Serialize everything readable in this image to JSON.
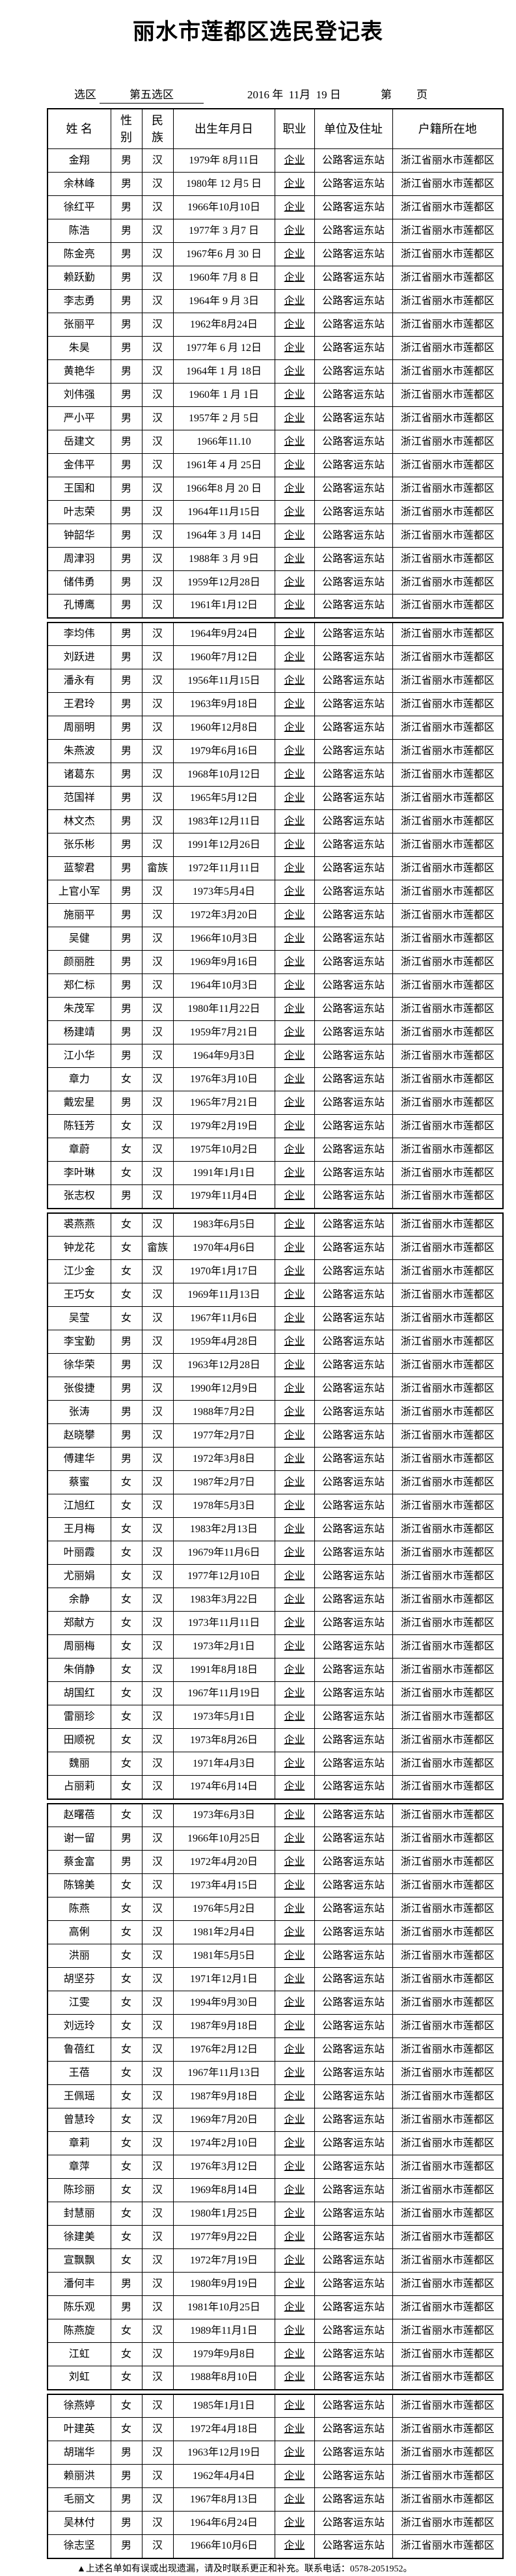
{
  "title": "丽水市莲都区选民登记表",
  "meta": {
    "district_label": "选区",
    "district_value": "第五选区",
    "date": "2016 年  11月  19 日",
    "page_label": "第",
    "page_suffix": "页"
  },
  "columns": [
    "姓  名",
    "性别",
    "民族",
    "出生年月日",
    "职业",
    "单位及住址",
    "户籍所在地"
  ],
  "groups": [
    [
      [
        "金翔",
        "男",
        "汉",
        "1979年  8月11日",
        "企业",
        "公路客运东站",
        "浙江省丽水市莲都区"
      ],
      [
        "余林峰",
        "男",
        "汉",
        "1980年  12 月5 日",
        "企业",
        "公路客运东站",
        "浙江省丽水市莲都区"
      ],
      [
        "徐红平",
        "男",
        "汉",
        "1966年10月10日",
        "企业",
        "公路客运东站",
        "浙江省丽水市莲都区"
      ],
      [
        "陈浩",
        "男",
        "汉",
        "1977年  3 月7  日",
        "企业",
        "公路客运东站",
        "浙江省丽水市莲都区"
      ],
      [
        "陈金亮",
        "男",
        "汉",
        "1967年6  月 30 日",
        "企业",
        "公路客运东站",
        "浙江省丽水市莲都区"
      ],
      [
        "赖跃勤",
        "男",
        "汉",
        "1960年  7月 8 日",
        "企业",
        "公路客运东站",
        "浙江省丽水市莲都区"
      ],
      [
        "李志勇",
        "男",
        "汉",
        "1964年 9 月  3日",
        "企业",
        "公路客运东站",
        "浙江省丽水市莲都区"
      ],
      [
        "张丽平",
        "男",
        "汉",
        "1962年8月24日",
        "企业",
        "公路客运东站",
        "浙江省丽水市莲都区"
      ],
      [
        "朱昊",
        "男",
        "汉",
        "1977年 6 月  12日",
        "企业",
        "公路客运东站",
        "浙江省丽水市莲都区"
      ],
      [
        "黄艳华",
        "男",
        "汉",
        "1964年 1 月  18日",
        "企业",
        "公路客运东站",
        "浙江省丽水市莲都区"
      ],
      [
        "刘伟强",
        "男",
        "汉",
        "1960年 1 月  1日",
        "企业",
        "公路客运东站",
        "浙江省丽水市莲都区"
      ],
      [
        "严小平",
        "男",
        "汉",
        "1957年 2 月  5日",
        "企业",
        "公路客运东站",
        "浙江省丽水市莲都区"
      ],
      [
        "岳建文",
        "男",
        "汉",
        "1966年11.10     ",
        "企业",
        "公路客运东站",
        "浙江省丽水市莲都区"
      ],
      [
        "金伟平",
        "男",
        "汉",
        "1961年 4 月  25日",
        "企业",
        "公路客运东站",
        "浙江省丽水市莲都区"
      ],
      [
        "王国和",
        "男",
        "汉",
        "1966年8  月 20 日",
        "企业",
        "公路客运东站",
        "浙江省丽水市莲都区"
      ],
      [
        "叶志荣",
        "男",
        "汉",
        "1964年11月15日",
        "企业",
        "公路客运东站",
        "浙江省丽水市莲都区"
      ],
      [
        "钟韶华",
        "男",
        "汉",
        "1964年 3 月  14日",
        "企业",
        "公路客运东站",
        "浙江省丽水市莲都区"
      ],
      [
        "周津羽",
        "男",
        "汉",
        "1988年 3 月  9日",
        "企业",
        "公路客运东站",
        "浙江省丽水市莲都区"
      ],
      [
        "储伟勇",
        "男",
        "汉",
        "1959年12月28日",
        "企业",
        "公路客运东站",
        "浙江省丽水市莲都区"
      ],
      [
        "孔博鹰",
        "男",
        "汉",
        "1961年1月12日",
        "企业",
        "公路客运东站",
        "浙江省丽水市莲都区"
      ]
    ],
    [
      [
        "李均伟",
        "男",
        "汉",
        "1964年9月24日",
        "企业",
        "公路客运东站",
        "浙江省丽水市莲都区"
      ],
      [
        "刘跃进",
        "男",
        "汉",
        "1960年7月12日",
        "企业",
        "公路客运东站",
        "浙江省丽水市莲都区"
      ],
      [
        "潘永有",
        "男",
        "汉",
        "1956年11月15日",
        "企业",
        "公路客运东站",
        "浙江省丽水市莲都区"
      ],
      [
        "王君玲",
        "男",
        "汉",
        "1963年9月18日",
        "企业",
        "公路客运东站",
        "浙江省丽水市莲都区"
      ],
      [
        "周丽明",
        "男",
        "汉",
        "1960年12月8日",
        "企业",
        "公路客运东站",
        "浙江省丽水市莲都区"
      ],
      [
        "朱燕波",
        "男",
        "汉",
        "1979年6月16日",
        "企业",
        "公路客运东站",
        "浙江省丽水市莲都区"
      ],
      [
        "诸葛东",
        "男",
        "汉",
        "1968年10月12日",
        "企业",
        "公路客运东站",
        "浙江省丽水市莲都区"
      ],
      [
        "范国祥",
        "男",
        "汉",
        "1965年5月12日",
        "企业",
        "公路客运东站",
        "浙江省丽水市莲都区"
      ],
      [
        "林文杰",
        "男",
        "汉",
        "1983年12月11日",
        "企业",
        "公路客运东站",
        "浙江省丽水市莲都区"
      ],
      [
        "张乐彬",
        "男",
        "汉",
        "1991年12月26日",
        "企业",
        "公路客运东站",
        "浙江省丽水市莲都区"
      ],
      [
        "蓝黎君",
        "男",
        "畲族",
        "1972年11月11日",
        "企业",
        "公路客运东站",
        "浙江省丽水市莲都区"
      ],
      [
        "上官小军",
        "男",
        "汉",
        "1973年5月4日",
        "企业",
        "公路客运东站",
        "浙江省丽水市莲都区"
      ],
      [
        "施丽平",
        "男",
        "汉",
        "1972年3月20日",
        "企业",
        "公路客运东站",
        "浙江省丽水市莲都区"
      ],
      [
        "吴健",
        "男",
        "汉",
        "1966年10月3日",
        "企业",
        "公路客运东站",
        "浙江省丽水市莲都区"
      ],
      [
        "颜丽胜",
        "男",
        "汉",
        "1969年9月16日",
        "企业",
        "公路客运东站",
        "浙江省丽水市莲都区"
      ],
      [
        "郑仁标",
        "男",
        "汉",
        "1964年10月3日",
        "企业",
        "公路客运东站",
        "浙江省丽水市莲都区"
      ],
      [
        "朱茂军",
        "男",
        "汉",
        "1980年11月22日",
        "企业",
        "公路客运东站",
        "浙江省丽水市莲都区"
      ],
      [
        "杨建靖",
        "男",
        "汉",
        "1959年7月21日",
        "企业",
        "公路客运东站",
        "浙江省丽水市莲都区"
      ],
      [
        "江小华",
        "男",
        "汉",
        "1964年9月3日",
        "企业",
        "公路客运东站",
        "浙江省丽水市莲都区"
      ],
      [
        "章力",
        "女",
        "汉",
        "1976年3月10日",
        "企业",
        "公路客运东站",
        "浙江省丽水市莲都区"
      ],
      [
        "戴宏星",
        "男",
        "汉",
        "1965年7月21日",
        "企业",
        "公路客运东站",
        "浙江省丽水市莲都区"
      ],
      [
        "陈钰芳",
        "女",
        "汉",
        "1979年2月19日",
        "企业",
        "公路客运东站",
        "浙江省丽水市莲都区"
      ],
      [
        "章蔚",
        "女",
        "汉",
        "1975年10月2日",
        "企业",
        "公路客运东站",
        "浙江省丽水市莲都区"
      ],
      [
        "李叶琳",
        "女",
        "汉",
        "1991年1月1日",
        "企业",
        "公路客运东站",
        "浙江省丽水市莲都区"
      ],
      [
        "张志权",
        "男",
        "汉",
        "1979年11月4日",
        "企业",
        "公路客运东站",
        "浙江省丽水市莲都区"
      ]
    ],
    [
      [
        "裘燕燕",
        "女",
        "汉",
        "1983年6月5日",
        "企业",
        "公路客运东站",
        "浙江省丽水市莲都区"
      ],
      [
        "钟龙花",
        "女",
        "畲族",
        "1970年4月6日",
        "企业",
        "公路客运东站",
        "浙江省丽水市莲都区"
      ],
      [
        "江少金",
        "女",
        "汉",
        "1970年1月17日",
        "企业",
        "公路客运东站",
        "浙江省丽水市莲都区"
      ],
      [
        "王巧女",
        "女",
        "汉",
        "1969年11月13日",
        "企业",
        "公路客运东站",
        "浙江省丽水市莲都区"
      ],
      [
        "吴莹",
        "女",
        "汉",
        "1967年11月6日",
        "企业",
        "公路客运东站",
        "浙江省丽水市莲都区"
      ],
      [
        "李宝勤",
        "男",
        "汉",
        "1959年4月28日",
        "企业",
        "公路客运东站",
        "浙江省丽水市莲都区"
      ],
      [
        "徐华荣",
        "男",
        "汉",
        "1963年12月28日",
        "企业",
        "公路客运东站",
        "浙江省丽水市莲都区"
      ],
      [
        "张俊捷",
        "男",
        "汉",
        "1990年12月9日",
        "企业",
        "公路客运东站",
        "浙江省丽水市莲都区"
      ],
      [
        "张涛",
        "男",
        "汉",
        "1988年7月2日",
        "企业",
        "公路客运东站",
        "浙江省丽水市莲都区"
      ],
      [
        "赵晓攀",
        "男",
        "汉",
        "1977年2月7日",
        "企业",
        "公路客运东站",
        "浙江省丽水市莲都区"
      ],
      [
        "傅建华",
        "男",
        "汉",
        "1972年3月8日",
        "企业",
        "公路客运东站",
        "浙江省丽水市莲都区"
      ],
      [
        "蔡蜜",
        "女",
        "汉",
        "1987年2月7日",
        "企业",
        "公路客运东站",
        "浙江省丽水市莲都区"
      ],
      [
        "江旭红",
        "女",
        "汉",
        "1978年5月3日",
        "企业",
        "公路客运东站",
        "浙江省丽水市莲都区"
      ],
      [
        "王月梅",
        "女",
        "汉",
        "1983年2月13日",
        "企业",
        "公路客运东站",
        "浙江省丽水市莲都区"
      ],
      [
        "叶丽霞",
        "女",
        "汉",
        "19679年11月6日",
        "企业",
        "公路客运东站",
        "浙江省丽水市莲都区"
      ],
      [
        "尤丽娟",
        "女",
        "汉",
        "1977年12月10日",
        "企业",
        "公路客运东站",
        "浙江省丽水市莲都区"
      ],
      [
        "余静",
        "女",
        "汉",
        "1983年3月22日",
        "企业",
        "公路客运东站",
        "浙江省丽水市莲都区"
      ],
      [
        "郑献方",
        "女",
        "汉",
        "1973年11月11日",
        "企业",
        "公路客运东站",
        "浙江省丽水市莲都区"
      ],
      [
        "周丽梅",
        "女",
        "汉",
        "1973年2月1日",
        "企业",
        "公路客运东站",
        "浙江省丽水市莲都区"
      ],
      [
        "朱俏静",
        "女",
        "汉",
        "1991年8月18日",
        "企业",
        "公路客运东站",
        "浙江省丽水市莲都区"
      ],
      [
        "胡国红",
        "女",
        "汉",
        "1967年11月19日",
        "企业",
        "公路客运东站",
        "浙江省丽水市莲都区"
      ],
      [
        "雷丽珍",
        "女",
        "汉",
        "1973年5月1日",
        "企业",
        "公路客运东站",
        "浙江省丽水市莲都区"
      ],
      [
        "田顺祝",
        "女",
        "汉",
        "1973年8月26日",
        "企业",
        "公路客运东站",
        "浙江省丽水市莲都区"
      ],
      [
        "魏丽",
        "女",
        "汉",
        "1971年4月3日",
        "企业",
        "公路客运东站",
        "浙江省丽水市莲都区"
      ],
      [
        "占丽莉",
        "女",
        "汉",
        "1974年6月14日",
        "企业",
        "公路客运东站",
        "浙江省丽水市莲都区"
      ]
    ],
    [
      [
        "赵曙蓓",
        "女",
        "汉",
        "1973年6月3日",
        "企业",
        "公路客运东站",
        "浙江省丽水市莲都区"
      ],
      [
        "谢一留",
        "男",
        "汉",
        "1966年10月25日",
        "企业",
        "公路客运东站",
        "浙江省丽水市莲都区"
      ],
      [
        "蔡金富",
        "男",
        "汉",
        "1972年4月20日",
        "企业",
        "公路客运东站",
        "浙江省丽水市莲都区"
      ],
      [
        "陈锦美",
        "女",
        "汉",
        "1973年4月15日",
        "企业",
        "公路客运东站",
        "浙江省丽水市莲都区"
      ],
      [
        "陈燕",
        "女",
        "汉",
        "1976年5月2日",
        "企业",
        "公路客运东站",
        "浙江省丽水市莲都区"
      ],
      [
        "高俐",
        "女",
        "汉",
        "1981年2月4日",
        "企业",
        "公路客运东站",
        "浙江省丽水市莲都区"
      ],
      [
        "洪丽",
        "女",
        "汉",
        "1981年5月5日",
        "企业",
        "公路客运东站",
        "浙江省丽水市莲都区"
      ],
      [
        "胡坚芬",
        "女",
        "汉",
        "1971年12月1日",
        "企业",
        "公路客运东站",
        "浙江省丽水市莲都区"
      ],
      [
        "江雯",
        "女",
        "汉",
        "1994年9月30日",
        "企业",
        "公路客运东站",
        "浙江省丽水市莲都区"
      ],
      [
        "刘远玲",
        "女",
        "汉",
        "1987年9月18日",
        "企业",
        "公路客运东站",
        "浙江省丽水市莲都区"
      ],
      [
        "鲁蓓红",
        "女",
        "汉",
        "1976年2月12日",
        "企业",
        "公路客运东站",
        "浙江省丽水市莲都区"
      ],
      [
        "王蓓",
        "女",
        "汉",
        "1967年11月13日",
        "企业",
        "公路客运东站",
        "浙江省丽水市莲都区"
      ],
      [
        "王佩瑶",
        "女",
        "汉",
        "1987年9月18日",
        "企业",
        "公路客运东站",
        "浙江省丽水市莲都区"
      ],
      [
        "曾慧玲",
        "女",
        "汉",
        "1969年7月20日",
        "企业",
        "公路客运东站",
        "浙江省丽水市莲都区"
      ],
      [
        "章莉",
        "女",
        "汉",
        "1974年2月10日",
        "企业",
        "公路客运东站",
        "浙江省丽水市莲都区"
      ],
      [
        "章萍",
        "女",
        "汉",
        "1976年3月12日",
        "企业",
        "公路客运东站",
        "浙江省丽水市莲都区"
      ],
      [
        "陈珍丽",
        "女",
        "汉",
        "1969年8月14日",
        "企业",
        "公路客运东站",
        "浙江省丽水市莲都区"
      ],
      [
        "封慧丽",
        "女",
        "汉",
        "1980年1月25日",
        "企业",
        "公路客运东站",
        "浙江省丽水市莲都区"
      ],
      [
        "徐建美",
        "女",
        "汉",
        "1977年9月22日",
        "企业",
        "公路客运东站",
        "浙江省丽水市莲都区"
      ],
      [
        "宣飘飘",
        "女",
        "汉",
        "1972年7月19日",
        "企业",
        "公路客运东站",
        "浙江省丽水市莲都区"
      ],
      [
        "潘何丰",
        "男",
        "汉",
        "1980年9月19日",
        "企业",
        "公路客运东站",
        "浙江省丽水市莲都区"
      ],
      [
        "陈乐观",
        "男",
        "汉",
        "1981年10月25日",
        "企业",
        "公路客运东站",
        "浙江省丽水市莲都区"
      ],
      [
        "陈燕旋",
        "女",
        "汉",
        "1989年11月1日",
        "企业",
        "公路客运东站",
        "浙江省丽水市莲都区"
      ],
      [
        "江虹",
        "女",
        "汉",
        "1979年9月8日",
        "企业",
        "公路客运东站",
        "浙江省丽水市莲都区"
      ],
      [
        "刘虹",
        "女",
        "汉",
        "1988年8月10日",
        "企业",
        "公路客运东站",
        "浙江省丽水市莲都区"
      ]
    ],
    [
      [
        "徐燕婷",
        "女",
        "汉",
        "1985年1月1日",
        "企业",
        "公路客运东站",
        "浙江省丽水市莲都区"
      ],
      [
        "叶建英",
        "女",
        "汉",
        "1972年4月18日",
        "企业",
        "公路客运东站",
        "浙江省丽水市莲都区"
      ],
      [
        "胡瑞华",
        "男",
        "汉",
        "1963年12月19日",
        "企业",
        "公路客运东站",
        "浙江省丽水市莲都区"
      ],
      [
        "赖丽洪",
        "男",
        "汉",
        "1962年4月4日",
        "企业",
        "公路客运东站",
        "浙江省丽水市莲都区"
      ],
      [
        "毛丽文",
        "男",
        "汉",
        "1967年8月13日",
        "企业",
        "公路客运东站",
        "浙江省丽水市莲都区"
      ],
      [
        "吴林付",
        "男",
        "汉",
        "1964年6月24日",
        "企业",
        "公路客运东站",
        "浙江省丽水市莲都区"
      ],
      [
        "徐志坚",
        "男",
        "汉",
        "1966年10月6日",
        "企业",
        "公路客运东站",
        "浙江省丽水市莲都区"
      ]
    ]
  ],
  "footnote": "▲上述名单如有误或出现遗漏，请及时联系更正和补充。联系电话：0578-2051952。"
}
